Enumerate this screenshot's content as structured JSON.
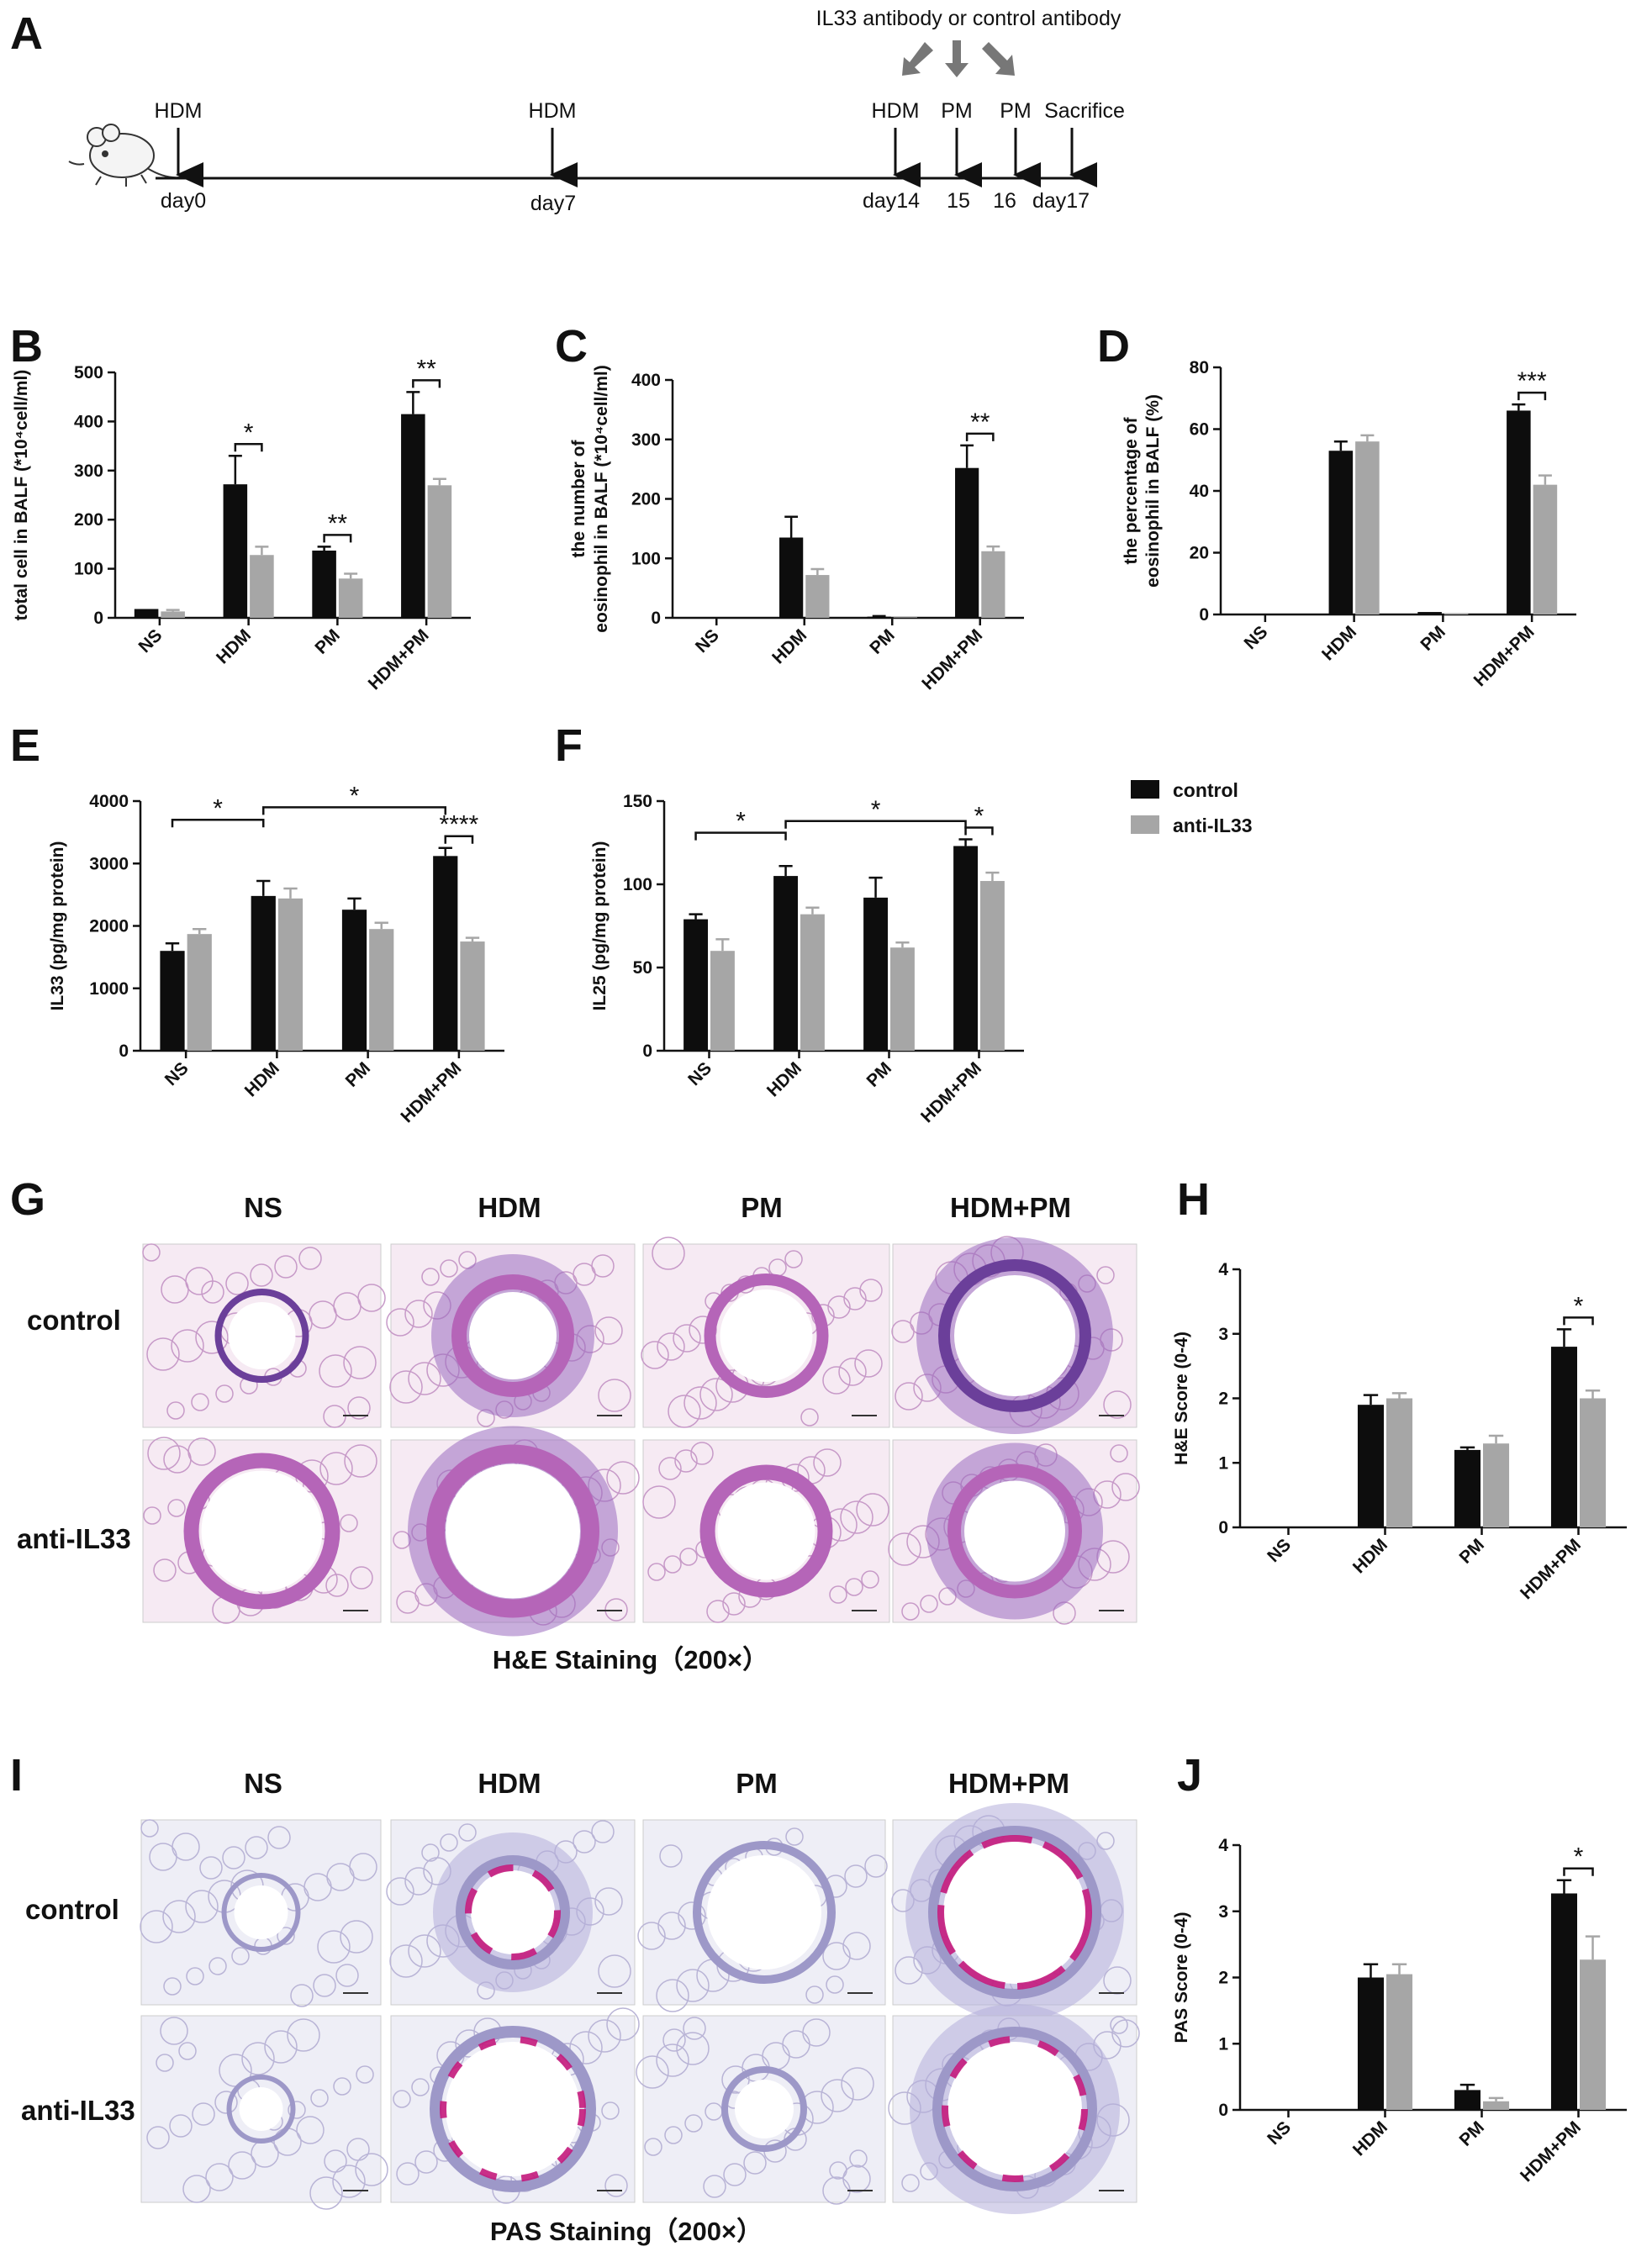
{
  "panel_labels": {
    "A": "A",
    "B": "B",
    "C": "C",
    "D": "D",
    "E": "E",
    "F": "F",
    "G": "G",
    "H": "H",
    "I": "I",
    "J": "J"
  },
  "timeline": {
    "injection_label": "IL33 antibody or control antibody",
    "events": [
      {
        "top": "HDM",
        "bottom": "day0"
      },
      {
        "top": "HDM",
        "bottom": "day7"
      },
      {
        "top": "HDM",
        "bottom": "day14"
      },
      {
        "top": "PM",
        "bottom": "15"
      },
      {
        "top": "PM",
        "bottom": "16"
      },
      {
        "top": "Sacrifice",
        "bottom": "day17"
      }
    ]
  },
  "legend": {
    "items": [
      {
        "label": "control",
        "color": "#0d0d0d"
      },
      {
        "label": "anti-IL33",
        "color": "#a6a6a6"
      }
    ]
  },
  "colors": {
    "control": "#0d0d0d",
    "anti": "#a6a6a6"
  },
  "micrographs": {
    "G": {
      "cols": [
        "NS",
        "HDM",
        "PM",
        "HDM+PM"
      ],
      "rows": [
        "control",
        "anti-IL33"
      ],
      "caption": "H&E Staining（200×）"
    },
    "I": {
      "cols": [
        "NS",
        "HDM",
        "PM",
        "HDM+PM"
      ],
      "rows": [
        "control",
        "anti-IL33"
      ],
      "caption": "PAS Staining（200×）"
    }
  },
  "chart_data": [
    {
      "id": "B",
      "type": "bar",
      "categories": [
        "NS",
        "HDM",
        "PM",
        "HDM+PM"
      ],
      "ylabel": "total cell in BALF (*10⁴cell/ml)",
      "ylim": [
        0,
        500
      ],
      "yticks": [
        0,
        100,
        200,
        300,
        400,
        500
      ],
      "series": [
        {
          "name": "control",
          "values": [
            18,
            272,
            137,
            415
          ],
          "errors": [
            0,
            58,
            8,
            45
          ]
        },
        {
          "name": "anti-IL33",
          "values": [
            13,
            128,
            80,
            270
          ],
          "errors": [
            3,
            17,
            10,
            13
          ]
        }
      ],
      "annotations": [
        {
          "type": "pair",
          "group": 1,
          "label": "*"
        },
        {
          "type": "pair",
          "group": 2,
          "label": "**"
        },
        {
          "type": "pair",
          "group": 3,
          "label": "**"
        }
      ]
    },
    {
      "id": "C",
      "type": "bar",
      "categories": [
        "NS",
        "HDM",
        "PM",
        "HDM+PM"
      ],
      "ylabel": [
        "the number of",
        "eosinophil in BALF (*10⁴cell/ml)"
      ],
      "ylim": [
        0,
        400
      ],
      "yticks": [
        0,
        100,
        200,
        300,
        400
      ],
      "series": [
        {
          "name": "control",
          "values": [
            0,
            135,
            2,
            252
          ],
          "errors": [
            0,
            35,
            1,
            38
          ]
        },
        {
          "name": "anti-IL33",
          "values": [
            0,
            72,
            1,
            112
          ],
          "errors": [
            0,
            10,
            0,
            8
          ]
        }
      ],
      "annotations": [
        {
          "type": "pair",
          "group": 3,
          "label": "**"
        }
      ]
    },
    {
      "id": "D",
      "type": "bar",
      "categories": [
        "NS",
        "HDM",
        "PM",
        "HDM+PM"
      ],
      "ylabel": [
        "the percentage of",
        "eosinophil in BALF (%)"
      ],
      "ylim": [
        0,
        80
      ],
      "yticks": [
        0,
        20,
        40,
        60,
        80
      ],
      "series": [
        {
          "name": "control",
          "values": [
            0,
            53,
            0.8,
            66
          ],
          "errors": [
            0,
            3,
            0,
            2
          ]
        },
        {
          "name": "anti-IL33",
          "values": [
            0,
            56,
            0.3,
            42
          ],
          "errors": [
            0,
            2,
            0,
            3
          ]
        }
      ],
      "annotations": [
        {
          "type": "pair",
          "group": 3,
          "label": "***"
        }
      ]
    },
    {
      "id": "E",
      "type": "bar",
      "categories": [
        "NS",
        "HDM",
        "PM",
        "HDM+PM"
      ],
      "ylabel": "IL33 (pg/mg protein)",
      "ylim": [
        0,
        4000
      ],
      "yticks": [
        0,
        1000,
        2000,
        3000,
        4000
      ],
      "series": [
        {
          "name": "control",
          "values": [
            1600,
            2480,
            2260,
            3120
          ],
          "errors": [
            120,
            240,
            180,
            130
          ]
        },
        {
          "name": "anti-IL33",
          "values": [
            1870,
            2440,
            1950,
            1750
          ],
          "errors": [
            80,
            160,
            100,
            60
          ]
        }
      ],
      "annotations": [
        {
          "type": "span",
          "from": 0,
          "to": 1,
          "value": 3700,
          "label": "*"
        },
        {
          "type": "span",
          "from": 1,
          "to": 3,
          "value": 3900,
          "label": "*"
        },
        {
          "type": "pair",
          "group": 3,
          "label": "****"
        }
      ]
    },
    {
      "id": "F",
      "type": "bar",
      "categories": [
        "NS",
        "HDM",
        "PM",
        "HDM+PM"
      ],
      "ylabel": "IL25 (pg/mg protein)",
      "ylim": [
        0,
        150
      ],
      "yticks": [
        0,
        50,
        100,
        150
      ],
      "series": [
        {
          "name": "control",
          "values": [
            79,
            105,
            92,
            123
          ],
          "errors": [
            3,
            6,
            12,
            4
          ]
        },
        {
          "name": "anti-IL33",
          "values": [
            60,
            82,
            62,
            102
          ],
          "errors": [
            7,
            4,
            3,
            5
          ]
        }
      ],
      "annotations": [
        {
          "type": "span",
          "from": 0,
          "to": 1,
          "value": 131,
          "label": "*"
        },
        {
          "type": "span",
          "from": 1,
          "to": 3,
          "value": 138,
          "label": "*"
        },
        {
          "type": "pair",
          "group": 3,
          "label": "*"
        }
      ]
    },
    {
      "id": "H",
      "type": "bar",
      "categories": [
        "NS",
        "HDM",
        "PM",
        "HDM+PM"
      ],
      "ylabel": "H&E Score (0-4)",
      "ylim": [
        0,
        4
      ],
      "yticks": [
        0,
        1,
        2,
        3,
        4
      ],
      "series": [
        {
          "name": "control",
          "values": [
            0,
            1.9,
            1.2,
            2.8
          ],
          "errors": [
            0,
            0.15,
            0.04,
            0.27
          ]
        },
        {
          "name": "anti-IL33",
          "values": [
            0,
            2.0,
            1.3,
            2.0
          ],
          "errors": [
            0,
            0.08,
            0.12,
            0.12
          ]
        }
      ],
      "annotations": [
        {
          "type": "pair",
          "group": 3,
          "label": "*"
        }
      ]
    },
    {
      "id": "J",
      "type": "bar",
      "categories": [
        "NS",
        "HDM",
        "PM",
        "HDM+PM"
      ],
      "ylabel": "PAS Score (0-4)",
      "ylim": [
        0,
        4
      ],
      "yticks": [
        0,
        1,
        2,
        3,
        4
      ],
      "series": [
        {
          "name": "control",
          "values": [
            0,
            2.0,
            0.3,
            3.27
          ],
          "errors": [
            0,
            0.2,
            0.08,
            0.2
          ]
        },
        {
          "name": "anti-IL33",
          "values": [
            0,
            2.05,
            0.13,
            2.27
          ],
          "errors": [
            0,
            0.15,
            0.05,
            0.35
          ]
        }
      ],
      "annotations": [
        {
          "type": "pair",
          "group": 3,
          "label": "*"
        }
      ]
    }
  ]
}
